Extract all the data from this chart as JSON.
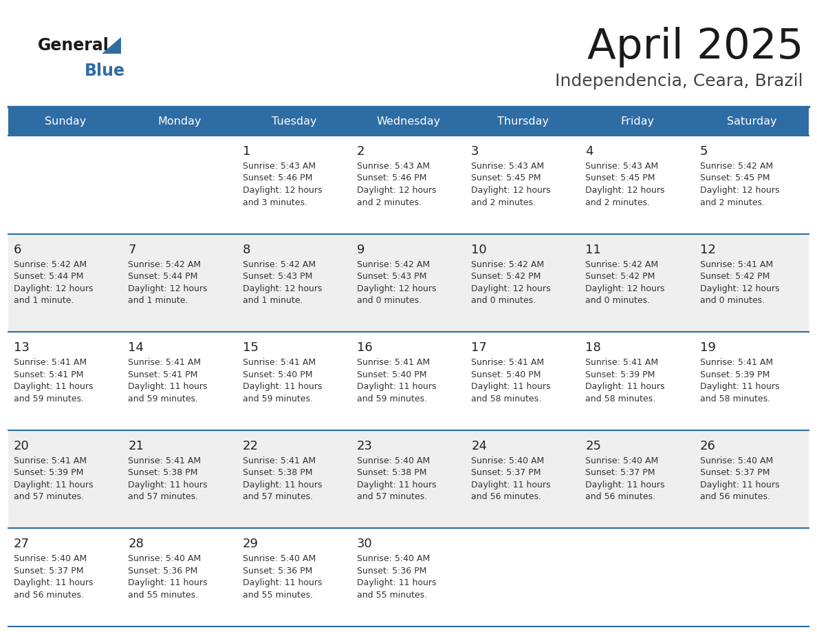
{
  "title": "April 2025",
  "subtitle": "Independencia, Ceara, Brazil",
  "header_bg": "#2E6DA4",
  "header_text": "#FFFFFF",
  "weekdays": [
    "Sunday",
    "Monday",
    "Tuesday",
    "Wednesday",
    "Thursday",
    "Friday",
    "Saturday"
  ],
  "row_bg": [
    "#FFFFFF",
    "#EFEFEF",
    "#FFFFFF",
    "#EFEFEF",
    "#FFFFFF"
  ],
  "day_number_color": "#222222",
  "day_text_color": "#333333",
  "grid_color": "#2E6DA4",
  "title_color": "#1a1a1a",
  "subtitle_color": "#444444",
  "calendar": [
    [
      {
        "day": "",
        "sunrise": "",
        "sunset": "",
        "daylight": ""
      },
      {
        "day": "",
        "sunrise": "",
        "sunset": "",
        "daylight": ""
      },
      {
        "day": "1",
        "sunrise": "5:43 AM",
        "sunset": "5:46 PM",
        "daylight": "12 hours and 3 minutes."
      },
      {
        "day": "2",
        "sunrise": "5:43 AM",
        "sunset": "5:46 PM",
        "daylight": "12 hours and 2 minutes."
      },
      {
        "day": "3",
        "sunrise": "5:43 AM",
        "sunset": "5:45 PM",
        "daylight": "12 hours and 2 minutes."
      },
      {
        "day": "4",
        "sunrise": "5:43 AM",
        "sunset": "5:45 PM",
        "daylight": "12 hours and 2 minutes."
      },
      {
        "day": "5",
        "sunrise": "5:42 AM",
        "sunset": "5:45 PM",
        "daylight": "12 hours and 2 minutes."
      }
    ],
    [
      {
        "day": "6",
        "sunrise": "5:42 AM",
        "sunset": "5:44 PM",
        "daylight": "12 hours and 1 minute."
      },
      {
        "day": "7",
        "sunrise": "5:42 AM",
        "sunset": "5:44 PM",
        "daylight": "12 hours and 1 minute."
      },
      {
        "day": "8",
        "sunrise": "5:42 AM",
        "sunset": "5:43 PM",
        "daylight": "12 hours and 1 minute."
      },
      {
        "day": "9",
        "sunrise": "5:42 AM",
        "sunset": "5:43 PM",
        "daylight": "12 hours and 0 minutes."
      },
      {
        "day": "10",
        "sunrise": "5:42 AM",
        "sunset": "5:42 PM",
        "daylight": "12 hours and 0 minutes."
      },
      {
        "day": "11",
        "sunrise": "5:42 AM",
        "sunset": "5:42 PM",
        "daylight": "12 hours and 0 minutes."
      },
      {
        "day": "12",
        "sunrise": "5:41 AM",
        "sunset": "5:42 PM",
        "daylight": "12 hours and 0 minutes."
      }
    ],
    [
      {
        "day": "13",
        "sunrise": "5:41 AM",
        "sunset": "5:41 PM",
        "daylight": "11 hours and 59 minutes."
      },
      {
        "day": "14",
        "sunrise": "5:41 AM",
        "sunset": "5:41 PM",
        "daylight": "11 hours and 59 minutes."
      },
      {
        "day": "15",
        "sunrise": "5:41 AM",
        "sunset": "5:40 PM",
        "daylight": "11 hours and 59 minutes."
      },
      {
        "day": "16",
        "sunrise": "5:41 AM",
        "sunset": "5:40 PM",
        "daylight": "11 hours and 59 minutes."
      },
      {
        "day": "17",
        "sunrise": "5:41 AM",
        "sunset": "5:40 PM",
        "daylight": "11 hours and 58 minutes."
      },
      {
        "day": "18",
        "sunrise": "5:41 AM",
        "sunset": "5:39 PM",
        "daylight": "11 hours and 58 minutes."
      },
      {
        "day": "19",
        "sunrise": "5:41 AM",
        "sunset": "5:39 PM",
        "daylight": "11 hours and 58 minutes."
      }
    ],
    [
      {
        "day": "20",
        "sunrise": "5:41 AM",
        "sunset": "5:39 PM",
        "daylight": "11 hours and 57 minutes."
      },
      {
        "day": "21",
        "sunrise": "5:41 AM",
        "sunset": "5:38 PM",
        "daylight": "11 hours and 57 minutes."
      },
      {
        "day": "22",
        "sunrise": "5:41 AM",
        "sunset": "5:38 PM",
        "daylight": "11 hours and 57 minutes."
      },
      {
        "day": "23",
        "sunrise": "5:40 AM",
        "sunset": "5:38 PM",
        "daylight": "11 hours and 57 minutes."
      },
      {
        "day": "24",
        "sunrise": "5:40 AM",
        "sunset": "5:37 PM",
        "daylight": "11 hours and 56 minutes."
      },
      {
        "day": "25",
        "sunrise": "5:40 AM",
        "sunset": "5:37 PM",
        "daylight": "11 hours and 56 minutes."
      },
      {
        "day": "26",
        "sunrise": "5:40 AM",
        "sunset": "5:37 PM",
        "daylight": "11 hours and 56 minutes."
      }
    ],
    [
      {
        "day": "27",
        "sunrise": "5:40 AM",
        "sunset": "5:37 PM",
        "daylight": "11 hours and 56 minutes."
      },
      {
        "day": "28",
        "sunrise": "5:40 AM",
        "sunset": "5:36 PM",
        "daylight": "11 hours and 55 minutes."
      },
      {
        "day": "29",
        "sunrise": "5:40 AM",
        "sunset": "5:36 PM",
        "daylight": "11 hours and 55 minutes."
      },
      {
        "day": "30",
        "sunrise": "5:40 AM",
        "sunset": "5:36 PM",
        "daylight": "11 hours and 55 minutes."
      },
      {
        "day": "",
        "sunrise": "",
        "sunset": "",
        "daylight": ""
      },
      {
        "day": "",
        "sunrise": "",
        "sunset": "",
        "daylight": ""
      },
      {
        "day": "",
        "sunrise": "",
        "sunset": "",
        "daylight": ""
      }
    ]
  ]
}
